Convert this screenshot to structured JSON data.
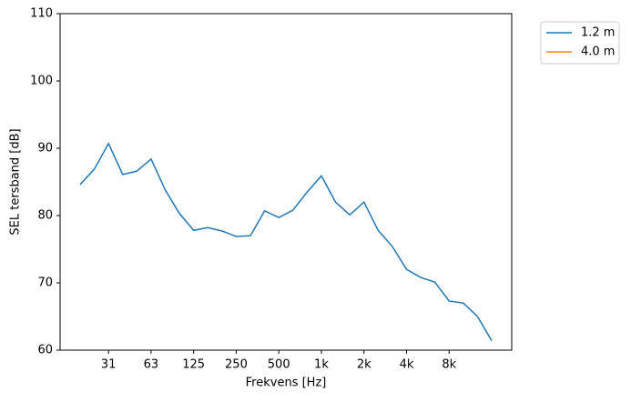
{
  "chart_data": {
    "type": "line",
    "xlabel": "Frekvens [Hz]",
    "ylabel": "SEL tersband [dB]",
    "categories": [
      null,
      null,
      "31",
      null,
      null,
      "63",
      null,
      null,
      "125",
      null,
      null,
      "250",
      null,
      null,
      "500",
      null,
      null,
      "1k",
      null,
      null,
      "2k",
      null,
      null,
      "4k",
      null,
      null,
      "8k",
      null,
      null,
      null
    ],
    "series": [
      {
        "name": "1.2 m",
        "color": "#1f77b4",
        "values": [
          84.6,
          86.9,
          90.7,
          86.1,
          86.6,
          88.4,
          83.8,
          80.3,
          77.8,
          78.2,
          77.7,
          76.9,
          77.0,
          80.7,
          79.7,
          80.8,
          83.5,
          85.9,
          82.0,
          80.1,
          82.0,
          77.8,
          75.4,
          72.0,
          70.8,
          70.1,
          67.3,
          67.0,
          65.0,
          61.4
        ]
      },
      {
        "name": "4.0 m",
        "color": "#ff7f0e",
        "values": [
          null,
          null,
          null,
          null,
          null,
          null,
          null,
          null,
          null,
          null,
          null,
          null,
          null,
          null,
          null,
          null,
          null,
          null,
          null,
          null,
          null,
          null,
          null,
          null,
          null,
          null,
          null,
          null,
          null,
          null
        ]
      }
    ],
    "ylim": [
      60,
      110
    ],
    "yticks": [
      60,
      70,
      80,
      90,
      100,
      110
    ],
    "legend": "outside-upper-right"
  }
}
